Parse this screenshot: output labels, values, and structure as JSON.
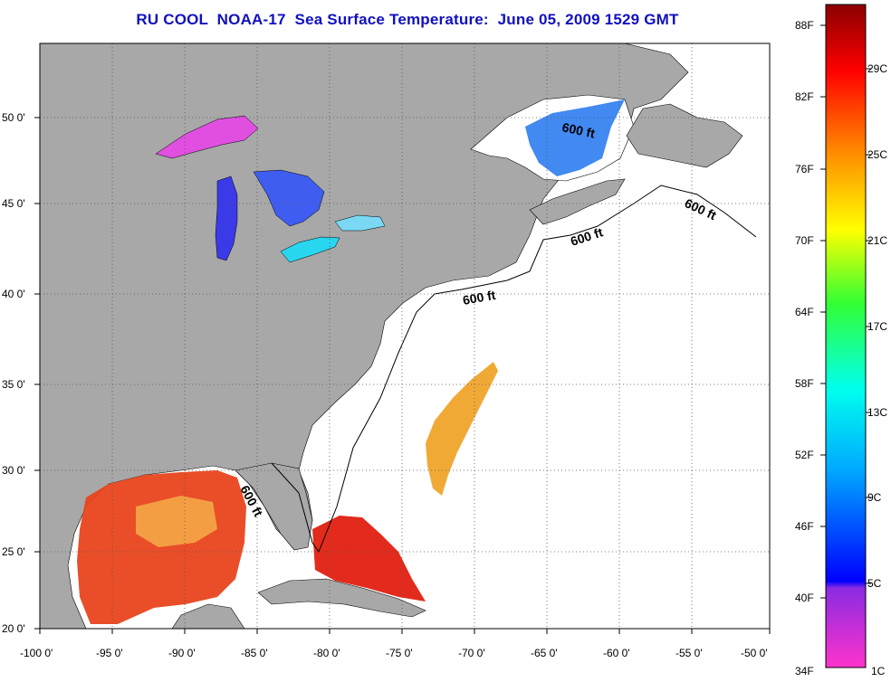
{
  "title": "RU COOL  NOAA-17  Sea Surface Temperature:  June 05, 2009 1529 GMT",
  "map": {
    "x_ticks": [
      "-100 0'",
      "-95 0'",
      "-90 0'",
      "-85 0'",
      "-80 0'",
      "-75 0'",
      "-70 0'",
      "-65 0'",
      "-60 0'",
      "-55 0'",
      "-50 0'"
    ],
    "y_ticks": [
      "50 0'",
      "45 0'",
      "40 0'",
      "35 0'",
      "30 0'",
      "25 0'",
      "20 0'"
    ],
    "contour_label": "600 ft",
    "colors": {
      "land": "#a8a8a8",
      "ocean": "#ffffff",
      "grid": "#555555"
    }
  },
  "colorbar": {
    "fahrenheit": [
      "88F",
      "82F",
      "76F",
      "70F",
      "64F",
      "58F",
      "52F",
      "46F",
      "40F",
      "34F"
    ],
    "celsius": [
      "29C",
      "25C",
      "21C",
      "17C",
      "13C",
      "9C",
      "5C",
      "1C"
    ]
  }
}
